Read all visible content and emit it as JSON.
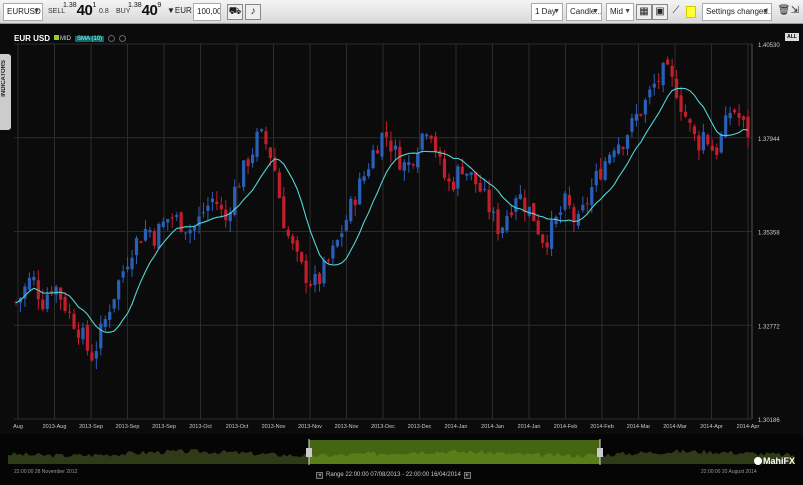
{
  "toolbar": {
    "symbol": "EURUSD",
    "sell_label": "SELL",
    "sell_prefix": "1.38",
    "sell_big": "40",
    "sell_sup": "1",
    "spread": "0.8",
    "buy_label": "BUY",
    "buy_prefix": "1.38",
    "buy_big": "40",
    "buy_sup": "9",
    "currency": "▼EUR",
    "amount": "100,000",
    "timeframe": "1 Day",
    "chart_type": "Candle...",
    "price_type": "Mid",
    "settings": "Settings changed..."
  },
  "chart": {
    "symbol": "EUR USD",
    "mid_label": "MID",
    "sma_label": "SMA (10)",
    "all_label": "ALL",
    "indicators_label": "INDICATORS",
    "colors": {
      "up": "#2a5fb8",
      "down": "#c21e2c",
      "sma": "#52d4d4",
      "grid": "#2c2c2c"
    }
  },
  "chart_data": {
    "type": "candlestick",
    "y_ticks": [
      "1.40530",
      "1.37944",
      "1.35358",
      "1.32772",
      "1.30186"
    ],
    "x_ticks": [
      "Aug",
      "2013-Aug",
      "2013-Sep",
      "2013-Sep",
      "2013-Sep",
      "2013-Oct",
      "2013-Oct",
      "2013-Nov",
      "2013-Nov",
      "2013-Nov",
      "2013-Dec",
      "2013-Dec",
      "2014-Jan",
      "2014-Jan",
      "2014-Jan",
      "2014-Feb",
      "2014-Feb",
      "2014-Mar",
      "2014-Mar",
      "2014-Apr",
      "2014-Apr"
    ],
    "ylim": [
      1.30186,
      1.4053
    ],
    "close_path": [
      1.334,
      1.336,
      1.339,
      1.341,
      1.337,
      1.334,
      1.338,
      1.339,
      1.336,
      1.333,
      1.33,
      1.328,
      1.325,
      1.321,
      1.319,
      1.324,
      1.328,
      1.333,
      1.337,
      1.341,
      1.345,
      1.349,
      1.351,
      1.353,
      1.355,
      1.352,
      1.354,
      1.356,
      1.358,
      1.357,
      1.356,
      1.355,
      1.354,
      1.356,
      1.359,
      1.361,
      1.363,
      1.36,
      1.356,
      1.362,
      1.366,
      1.369,
      1.373,
      1.376,
      1.38,
      1.379,
      1.376,
      1.371,
      1.362,
      1.354,
      1.35,
      1.346,
      1.343,
      1.341,
      1.339,
      1.34,
      1.343,
      1.346,
      1.349,
      1.353,
      1.357,
      1.361,
      1.365,
      1.368,
      1.372,
      1.376,
      1.379,
      1.381,
      1.378,
      1.375,
      1.373,
      1.371,
      1.374,
      1.378,
      1.381,
      1.384,
      1.378,
      1.372,
      1.368,
      1.366,
      1.369,
      1.372,
      1.37,
      1.368,
      1.366,
      1.363,
      1.36,
      1.356,
      1.354,
      1.358,
      1.361,
      1.365,
      1.362,
      1.36,
      1.358,
      1.354,
      1.351,
      1.353,
      1.356,
      1.359,
      1.362,
      1.358,
      1.355,
      1.359,
      1.363,
      1.367,
      1.37,
      1.373,
      1.376,
      1.379,
      1.378,
      1.381,
      1.383,
      1.386,
      1.388,
      1.391,
      1.394,
      1.396,
      1.398,
      1.395,
      1.393,
      1.388,
      1.384,
      1.38,
      1.378,
      1.381,
      1.378,
      1.375,
      1.379,
      1.383,
      1.388,
      1.386,
      1.383,
      1.381
    ]
  },
  "navigator": {
    "left_date": "22:00:00 28 November 2012",
    "right_date": "22:00:00 20 August 2014",
    "range_text": "Range 22:00:00 07/08/2013 - 22:00:00 16/04/2014",
    "brand": "MahiFX"
  }
}
